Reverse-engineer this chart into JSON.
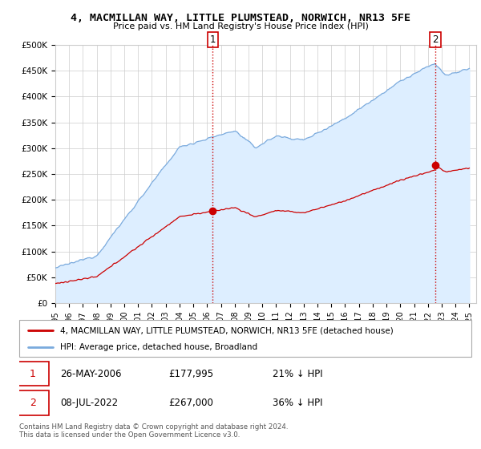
{
  "title": "4, MACMILLAN WAY, LITTLE PLUMSTEAD, NORWICH, NR13 5FE",
  "subtitle": "Price paid vs. HM Land Registry's House Price Index (HPI)",
  "ylabel_ticks": [
    "£0",
    "£50K",
    "£100K",
    "£150K",
    "£200K",
    "£250K",
    "£300K",
    "£350K",
    "£400K",
    "£450K",
    "£500K"
  ],
  "ytick_values": [
    0,
    50000,
    100000,
    150000,
    200000,
    250000,
    300000,
    350000,
    400000,
    450000,
    500000
  ],
  "ylim": [
    0,
    500000
  ],
  "xlim_start": 1995.0,
  "xlim_end": 2025.5,
  "purchase1_x": 2006.4,
  "purchase1_y": 177995,
  "purchase2_x": 2022.54,
  "purchase2_y": 267000,
  "purchase1_date": "26-MAY-2006",
  "purchase1_price": "£177,995",
  "purchase1_pct": "21% ↓ HPI",
  "purchase2_date": "08-JUL-2022",
  "purchase2_price": "£267,000",
  "purchase2_pct": "36% ↓ HPI",
  "legend_property": "4, MACMILLAN WAY, LITTLE PLUMSTEAD, NORWICH, NR13 5FE (detached house)",
  "legend_hpi": "HPI: Average price, detached house, Broadland",
  "footer": "Contains HM Land Registry data © Crown copyright and database right 2024.\nThis data is licensed under the Open Government Licence v3.0.",
  "property_color": "#cc0000",
  "hpi_color": "#7aaadd",
  "hpi_fill_color": "#ddeeff",
  "vline_color": "#cc0000",
  "grid_color": "#cccccc",
  "label_box_color": "#cc0000"
}
